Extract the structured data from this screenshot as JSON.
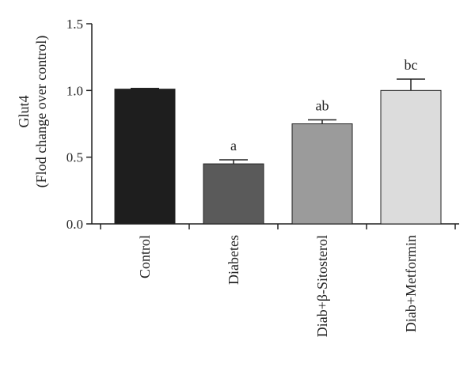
{
  "chart_data": {
    "type": "bar",
    "ylabel_line1": "Glut4",
    "ylabel_line2": "(Flod change over control)",
    "ylim": [
      0,
      1.5
    ],
    "yticks": [
      "0.0",
      "0.5",
      "1.0",
      "1.5"
    ],
    "ytick_values": [
      0,
      0.5,
      1.0,
      1.5
    ],
    "categories": [
      "Control",
      "Diabetes",
      "Diab+β-Sitosterol",
      "Diab+Metformin"
    ],
    "values": [
      1.01,
      0.45,
      0.75,
      1.0
    ],
    "errors": [
      0.005,
      0.03,
      0.03,
      0.085
    ],
    "significance": [
      "",
      "a",
      "ab",
      "bc"
    ],
    "colors": [
      "#1e1e1e",
      "#5a5a5a",
      "#9b9b9b",
      "#dcdcdc"
    ],
    "grid": false,
    "legend": "none"
  }
}
